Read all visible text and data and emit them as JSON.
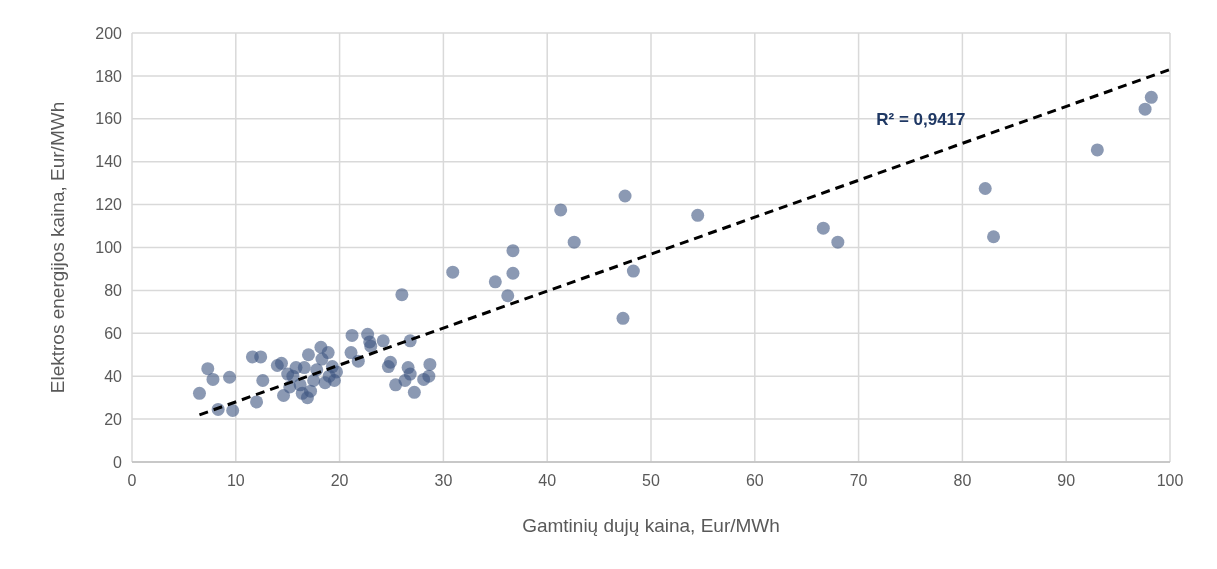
{
  "chart_data": {
    "type": "scatter",
    "xlabel": "Gamtinių dujų kaina, Eur/MWh",
    "ylabel": "Elektros energijos kaina, Eur/MWh",
    "xlim": [
      0,
      100
    ],
    "ylim": [
      0,
      200
    ],
    "xticks": [
      0,
      10,
      20,
      30,
      40,
      50,
      60,
      70,
      80,
      90,
      100
    ],
    "yticks": [
      0,
      20,
      40,
      60,
      80,
      100,
      120,
      140,
      160,
      180,
      200
    ],
    "grid": true,
    "annotations": [
      "R² = 0,9417"
    ],
    "series": [
      {
        "color": "#3d5580",
        "marker": "circle",
        "x": [
          6.5,
          7.3,
          7.8,
          8.3,
          9.4,
          9.7,
          11.6,
          12,
          12.4,
          12.6,
          14,
          14.4,
          14.6,
          15,
          15.2,
          15.5,
          15.8,
          16.2,
          16.4,
          16.6,
          16.9,
          17,
          17.2,
          17.5,
          17.8,
          18.2,
          18.3,
          18.6,
          18.9,
          19,
          19.3,
          19.5,
          19.7,
          21.1,
          21.2,
          21.8,
          22.7,
          22.9,
          23,
          24.2,
          24.7,
          24.9,
          25.4,
          26,
          26.3,
          26.6,
          26.8,
          26.8,
          27.2,
          28.1,
          28.6,
          28.7,
          30.9,
          35,
          36.2,
          36.7,
          36.7,
          41.3,
          42.6,
          47.3,
          47.5,
          48.3,
          54.5,
          66.6,
          68,
          82.2,
          83,
          93,
          97.6,
          98.2
        ],
        "values": [
          32,
          43.5,
          38.5,
          24.5,
          39.5,
          24,
          49,
          28,
          49,
          38,
          45,
          46,
          31,
          41,
          35,
          40,
          44,
          36,
          32,
          44,
          30,
          50,
          33,
          38,
          43,
          53.5,
          48,
          37,
          51,
          40,
          44.5,
          38,
          42,
          51,
          59,
          47,
          59.5,
          56,
          54,
          56.5,
          44.5,
          46.5,
          36,
          78,
          38,
          44,
          56.5,
          41,
          32.5,
          38.5,
          40,
          45.5,
          88.5,
          84,
          77.5,
          98.5,
          88,
          117.5,
          102.5,
          67,
          124,
          89,
          115,
          109,
          102.5,
          127.5,
          105,
          145.5,
          164.5,
          170
        ]
      },
      {
        "type": "line",
        "color": "#000000",
        "line_style": "dashed",
        "marker": "none",
        "x": [
          6.5,
          100
        ],
        "values": [
          22,
          183
        ]
      }
    ]
  }
}
